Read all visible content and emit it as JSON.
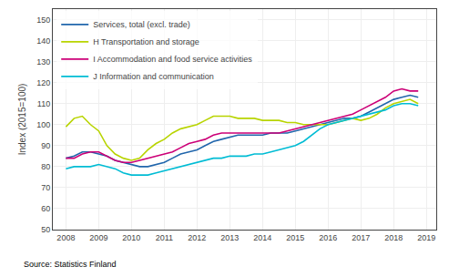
{
  "chart_data": {
    "type": "line",
    "ylabel": "Index (2015=100)",
    "source": "Source: Statistics Finland",
    "xlim": [
      2007.6,
      2019.3
    ],
    "ylim": [
      50,
      155
    ],
    "xticks": [
      2008,
      2009,
      2010,
      2011,
      2012,
      2013,
      2014,
      2015,
      2016,
      2017,
      2018,
      2019
    ],
    "yticks": [
      50,
      60,
      70,
      80,
      90,
      100,
      110,
      120,
      130,
      140,
      150
    ],
    "grid": true,
    "legend": "upper left",
    "x": [
      2008.0,
      2008.25,
      2008.5,
      2008.75,
      2009.0,
      2009.25,
      2009.5,
      2009.75,
      2010.0,
      2010.25,
      2010.5,
      2010.75,
      2011.0,
      2011.25,
      2011.5,
      2011.75,
      2012.0,
      2012.25,
      2012.5,
      2012.75,
      2013.0,
      2013.25,
      2013.5,
      2013.75,
      2014.0,
      2014.25,
      2014.5,
      2014.75,
      2015.0,
      2015.25,
      2015.5,
      2015.75,
      2016.0,
      2016.25,
      2016.5,
      2016.75,
      2017.0,
      2017.25,
      2017.5,
      2017.75,
      2018.0,
      2018.25,
      2018.5,
      2018.75
    ],
    "series": [
      {
        "name": "Services, total (excl. trade)",
        "color": "#2166ac",
        "values": [
          84,
          85,
          87,
          87,
          86,
          85,
          83,
          82,
          81,
          80,
          80,
          81,
          82,
          84,
          86,
          87,
          88,
          90,
          92,
          93,
          94,
          95,
          95,
          95,
          95,
          96,
          96,
          96,
          97,
          98,
          99,
          100,
          101,
          102,
          103,
          103,
          104,
          106,
          108,
          110,
          112,
          113,
          114,
          113
        ]
      },
      {
        "name": "H Transportation and storage",
        "color": "#b8d400",
        "values": [
          99,
          103,
          104,
          100,
          97,
          90,
          86,
          84,
          83,
          84,
          88,
          91,
          93,
          96,
          98,
          99,
          100,
          102,
          104,
          104,
          104,
          103,
          103,
          103,
          102,
          102,
          102,
          101,
          101,
          100,
          100,
          100,
          100,
          101,
          102,
          103,
          102,
          103,
          105,
          108,
          110,
          111,
          112,
          110
        ]
      },
      {
        "name": "I Accommodation and food service activities",
        "color": "#cc0077",
        "values": [
          84,
          84,
          86,
          87,
          87,
          85,
          83,
          82,
          82,
          83,
          84,
          85,
          86,
          87,
          89,
          91,
          92,
          93,
          95,
          96,
          96,
          96,
          96,
          96,
          96,
          96,
          96,
          97,
          98,
          99,
          100,
          101,
          102,
          103,
          104,
          105,
          107,
          109,
          111,
          113,
          116,
          117,
          116,
          116
        ]
      },
      {
        "name": "J Information and communication",
        "color": "#00bcd4",
        "values": [
          79,
          80,
          80,
          80,
          81,
          80,
          79,
          77,
          76,
          76,
          76,
          77,
          78,
          79,
          80,
          81,
          82,
          83,
          84,
          84,
          85,
          85,
          85,
          86,
          86,
          87,
          88,
          89,
          90,
          92,
          95,
          98,
          100,
          101,
          102,
          103,
          104,
          105,
          106,
          107,
          109,
          110,
          110,
          109
        ]
      }
    ]
  }
}
